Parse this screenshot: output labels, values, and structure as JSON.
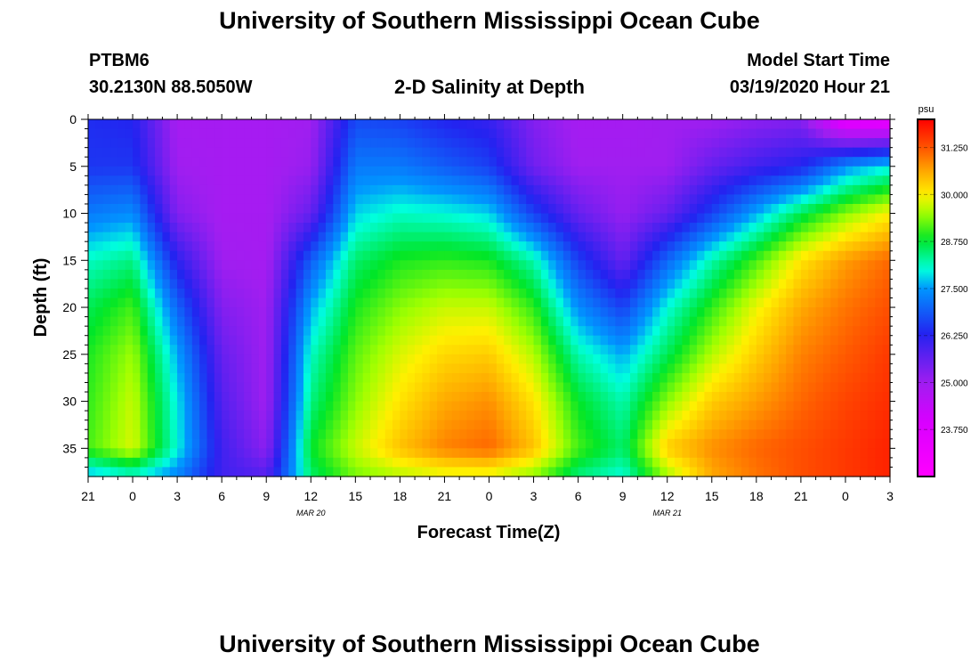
{
  "header": {
    "title": "University of Southern Mississippi Ocean Cube",
    "footer_title": "University of Southern Mississippi Ocean Cube",
    "station_id": "PTBM6",
    "station_coords": "30.2130N 88.5050W",
    "plot_title": "2-D Salinity at Depth",
    "model_start_label": "Model Start Time",
    "model_start_value": "03/19/2020 Hour 21"
  },
  "chart_data": {
    "type": "heatmap",
    "title": "2-D Salinity at Depth",
    "xlabel": "Forecast Time(Z)",
    "ylabel": "Depth (ft)",
    "x_hours": [
      0,
      3,
      6,
      9,
      12,
      15,
      18,
      21,
      24,
      27,
      30,
      33,
      36,
      39,
      42,
      45,
      48,
      51,
      54
    ],
    "x_tick_labels": [
      "21",
      "0",
      "3",
      "6",
      "9",
      "12",
      "15",
      "18",
      "21",
      "0",
      "3",
      "6",
      "9",
      "12",
      "15",
      "18",
      "21",
      "0",
      "3"
    ],
    "date_labels": [
      {
        "label": "MAR 20",
        "hour": 15
      },
      {
        "label": "MAR 21",
        "hour": 39
      }
    ],
    "xlim": [
      0,
      54
    ],
    "ylim": [
      0,
      38
    ],
    "y_ticks": [
      0,
      5,
      10,
      15,
      20,
      25,
      30,
      35
    ],
    "y_tick_labels": [
      "0",
      "5",
      "10",
      "15",
      "20",
      "25",
      "30",
      "35"
    ],
    "depths": [
      0,
      5,
      10,
      15,
      20,
      25,
      30,
      35,
      38
    ],
    "salinity_psu": [
      [
        26.4,
        26.3,
        24.9,
        24.9,
        24.9,
        25.0,
        26.7,
        26.6,
        26.3,
        26.1,
        25.3,
        24.9,
        24.9,
        25.0,
        25.0,
        25.2,
        25.3,
        23.4,
        23.2
      ],
      [
        26.5,
        26.5,
        25.0,
        24.9,
        24.9,
        25.1,
        27.2,
        27.2,
        26.9,
        26.6,
        25.5,
        25.0,
        25.0,
        25.0,
        25.6,
        26.0,
        26.3,
        27.4,
        27.9
      ],
      [
        27.2,
        27.4,
        25.3,
        24.9,
        24.9,
        25.6,
        27.8,
        28.1,
        28.0,
        27.8,
        26.6,
        25.6,
        25.1,
        25.6,
        26.6,
        27.6,
        28.6,
        29.4,
        30.0
      ],
      [
        28.1,
        28.4,
        26.2,
        25.0,
        24.9,
        26.9,
        28.5,
        28.9,
        29.0,
        28.9,
        28.2,
        26.6,
        25.6,
        27.0,
        28.2,
        29.1,
        30.1,
        30.7,
        31.1
      ],
      [
        28.6,
        29.1,
        27.0,
        25.3,
        25.0,
        27.6,
        28.9,
        29.4,
        29.7,
        29.7,
        29.0,
        27.4,
        26.6,
        28.0,
        29.0,
        29.9,
        30.6,
        31.0,
        31.3
      ],
      [
        28.9,
        29.5,
        27.6,
        25.6,
        25.0,
        28.1,
        29.2,
        29.8,
        30.2,
        30.3,
        29.6,
        28.2,
        27.6,
        28.6,
        29.6,
        30.3,
        30.9,
        31.2,
        31.5
      ],
      [
        29.0,
        29.7,
        27.9,
        25.8,
        25.0,
        28.4,
        29.4,
        30.1,
        30.6,
        30.8,
        30.1,
        28.8,
        28.2,
        29.4,
        30.3,
        30.7,
        31.1,
        31.4,
        31.6
      ],
      [
        29.1,
        29.8,
        28.0,
        26.0,
        25.2,
        28.8,
        29.7,
        30.4,
        30.9,
        31.1,
        30.4,
        29.1,
        28.5,
        30.3,
        30.8,
        31.1,
        31.3,
        31.5,
        31.7
      ],
      [
        27.6,
        28.0,
        27.3,
        26.0,
        25.8,
        28.5,
        29.3,
        29.6,
        29.8,
        29.8,
        29.4,
        28.4,
        28.0,
        29.5,
        30.6,
        31.0,
        31.3,
        31.5,
        31.7
      ]
    ],
    "colorbar": {
      "units": "psu",
      "min": 22.5,
      "max": 32.0,
      "tick_values": [
        31.25,
        30.0,
        28.75,
        27.5,
        26.25,
        25.0,
        23.75
      ],
      "tick_labels": [
        "31.250",
        "30.000",
        "28.750",
        "27.500",
        "26.250",
        "25.000",
        "23.750"
      ]
    }
  }
}
